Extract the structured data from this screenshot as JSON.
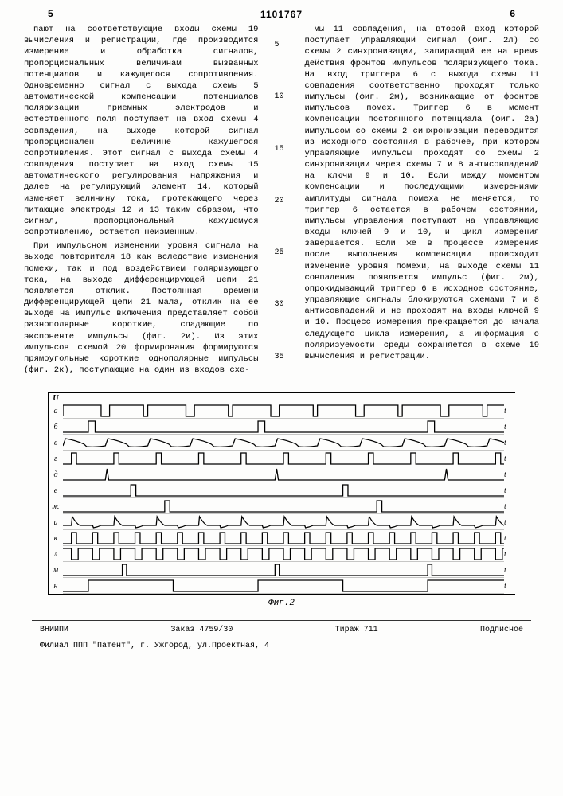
{
  "header": {
    "page_left": "5",
    "page_right": "6",
    "doc_number": "1101767"
  },
  "left_column": {
    "para1": "пают на соответствующие входы схемы 19 вычисления и регистрации, где производится измерение и обработка сигналов, пропорциональных величинам вызванных потенциалов и кажущегося сопротивления. Одновременно сигнал с выхода схемы 5 автоматической компенсации потенциалов поляризации приемных электродов и естественного поля поступает на вход схемы 4 совпадения, на выходе которой сигнал пропорционален величине кажущегося сопротивления. Этот сигнал с выхода схемы 4 совпадения поступает на вход схемы 15 автоматического регулирования напряжения и далее на регулирующий элемент 14, который изменяет величину тока, протекающего через питающие электроды 12 и 13 таким образом, что сигнал, пропорциональный кажущемуся сопротивлению, остается неизменным.",
    "para2": "При импульсном изменении уровня сигнала на выходе повторителя 18 как вследствие изменения помехи, так и под воздействием поляризующего тока, на выходе дифференцирующей цепи 21 появляется отклик. Постоянная времени дифференцирующей цепи 21 мала, отклик на ее выходе на импульс включения представляет собой разнополярные короткие, спадающие по экспоненте импульсы (фиг. 2и). Из этих импульсов схемой 20 формирования формируются прямоугольные короткие однополярные импульсы (фиг. 2к), поступающие на один из входов схе-"
  },
  "line_numbers": [
    "5",
    "10",
    "15",
    "20",
    "25",
    "30",
    "35"
  ],
  "right_column": {
    "para1": "мы 11 совпадения, на второй вход которой поступает управляющий сигнал (фиг. 2л) со схемы 2 синхронизации, запирающий ее на время действия фронтов импульсов поляризующего тока. На вход триггера 6 с выхода схемы 11 совпадения соответственно проходят только импульсы (фиг. 2м), возникающие от фронтов импульсов помех. Триггер 6 в момент компенсации постоянного потенциала (фиг. 2а) импульсом со схемы 2 синхронизации переводится из исходного состояния в рабочее, при котором управляющие импульсы проходят со схемы 2 синхронизации через схемы 7 и 8 антисовпадений на ключи 9 и 10. Если между моментом компенсации и последующими измерениями амплитуды сигнала помеха не меняется, то триггер 6 остается в рабочем состоянии, импульсы управления поступают на управляющие входы ключей 9 и 10, и цикл измерения завершается. Если же в процессе измерения после выполнения компенсации происходит изменение уровня помехи, на выходе схемы 11 совпадения появляется импульс (фиг. 2м), опрокидывающий триггер 6 в исходное состояние, управляющие сигналы блокируются схемами 7 и 8 антисовпадений и не проходят на входы ключей 9 и 10. Процесс измерения прекращается до начала следующего цикла измерения, а информация о поляризуемости среды сохраняется в схеме 19 вычисления и регистрации."
  },
  "chart": {
    "rows": [
      {
        "label": "а",
        "type": "square_wide",
        "end": "t"
      },
      {
        "label": "б",
        "type": "pulse_sparse",
        "end": "t"
      },
      {
        "label": "в",
        "type": "analog_decay",
        "end": "t"
      },
      {
        "label": "г",
        "type": "pulse_train",
        "end": "t"
      },
      {
        "label": "д",
        "type": "spike_sparse",
        "end": "t"
      },
      {
        "label": "е",
        "type": "pulse_very_sparse",
        "end": "t"
      },
      {
        "label": "ж",
        "type": "pulse_offset",
        "end": "t"
      },
      {
        "label": "и",
        "type": "bipolar_spikes",
        "end": "t"
      },
      {
        "label": "к",
        "type": "pulse_dense",
        "end": "t"
      },
      {
        "label": "л",
        "type": "square_inverted",
        "end": "t"
      },
      {
        "label": "м",
        "type": "pulse_filtered",
        "end": "t"
      },
      {
        "label": "н",
        "type": "step_long",
        "end": "t"
      }
    ],
    "y_axis_label": "U",
    "caption": "Фиг.2",
    "stroke_color": "#000000",
    "background": "#fdfdfc"
  },
  "footer": {
    "org": "ВНИИПИ",
    "order": "Заказ 4759/30",
    "tirazh": "Тираж 711",
    "sign": "Подписное",
    "branch": "Филиал ППП \"Патент\", г. Ужгород, ул.Проектная, 4"
  }
}
